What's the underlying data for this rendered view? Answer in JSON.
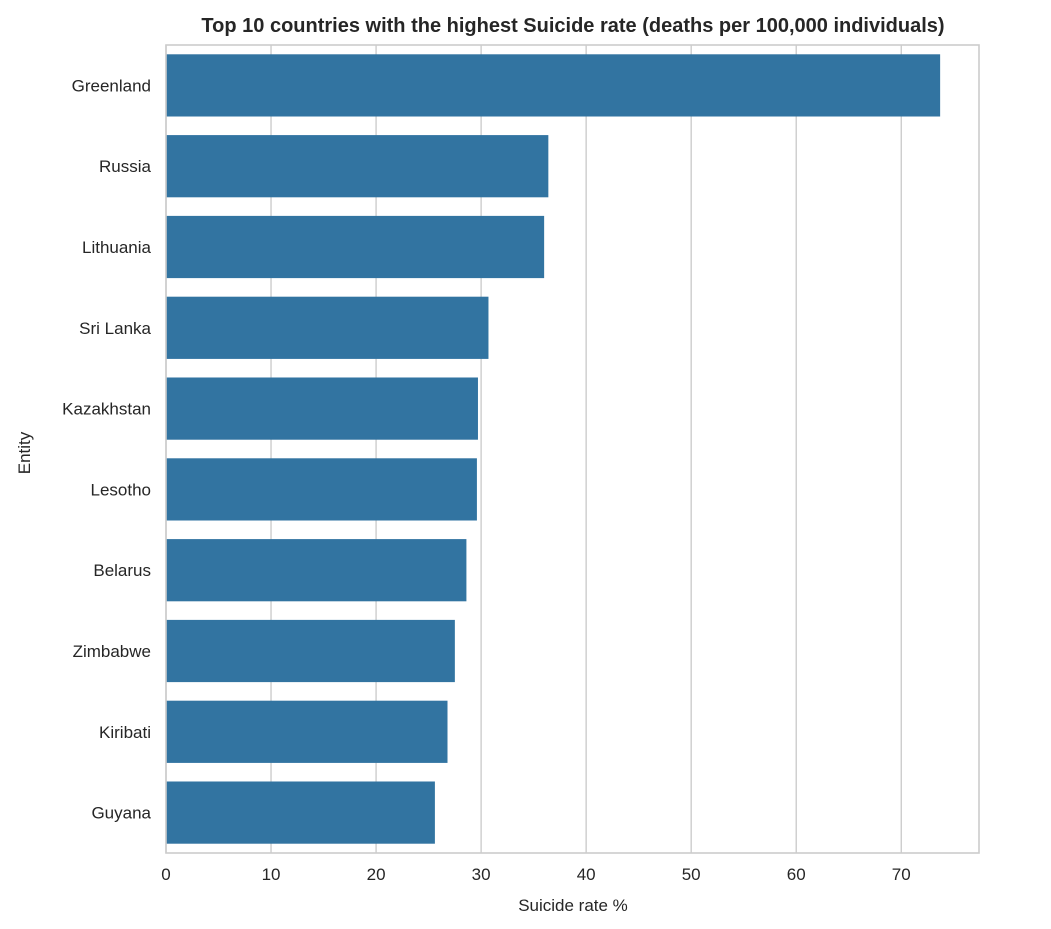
{
  "chart_data": {
    "type": "bar",
    "orientation": "horizontal",
    "title": "Top 10 countries with the highest Suicide rate (deaths per 100,000 individuals)",
    "xlabel": "Suicide rate %",
    "ylabel": "Entity",
    "categories": [
      "Greenland",
      "Russia",
      "Lithuania",
      "Sri Lanka",
      "Kazakhstan",
      "Lesotho",
      "Belarus",
      "Zimbabwe",
      "Kiribati",
      "Guyana"
    ],
    "values": [
      73.7,
      36.4,
      36.0,
      30.7,
      29.7,
      29.6,
      28.6,
      27.5,
      26.8,
      25.6
    ],
    "xlim": [
      0,
      77.4
    ],
    "xticks": [
      "0",
      "10",
      "20",
      "30",
      "40",
      "50",
      "60",
      "70"
    ],
    "grid": "vertical",
    "bar_color": "#3274a1"
  }
}
